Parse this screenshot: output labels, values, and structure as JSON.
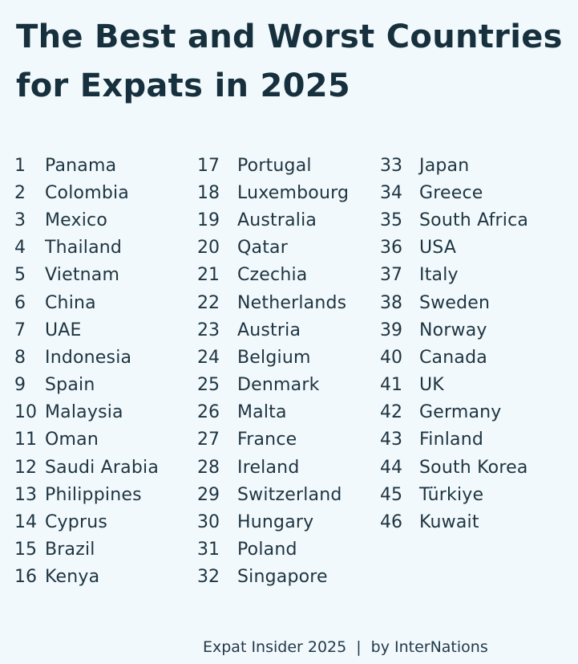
{
  "title": {
    "line1": "The Best and Worst Countries",
    "line2": "for Expats in 2025"
  },
  "columns": [
    [
      {
        "rank": "1",
        "country": "Panama"
      },
      {
        "rank": "2",
        "country": "Colombia"
      },
      {
        "rank": "3",
        "country": "Mexico"
      },
      {
        "rank": "4",
        "country": "Thailand"
      },
      {
        "rank": "5",
        "country": "Vietnam"
      },
      {
        "rank": "6",
        "country": "China"
      },
      {
        "rank": "7",
        "country": "UAE"
      },
      {
        "rank": "8",
        "country": "Indonesia"
      },
      {
        "rank": "9",
        "country": "Spain"
      },
      {
        "rank": "10",
        "country": "Malaysia"
      },
      {
        "rank": "11",
        "country": "Oman"
      },
      {
        "rank": "12",
        "country": "Saudi Arabia"
      },
      {
        "rank": "13",
        "country": "Philippines"
      },
      {
        "rank": "14",
        "country": "Cyprus"
      },
      {
        "rank": "15",
        "country": "Brazil"
      },
      {
        "rank": "16",
        "country": "Kenya"
      }
    ],
    [
      {
        "rank": "17",
        "country": "Portugal"
      },
      {
        "rank": "18",
        "country": "Luxembourg"
      },
      {
        "rank": "19",
        "country": "Australia"
      },
      {
        "rank": "20",
        "country": "Qatar"
      },
      {
        "rank": "21",
        "country": "Czechia"
      },
      {
        "rank": "22",
        "country": "Netherlands"
      },
      {
        "rank": "23",
        "country": "Austria"
      },
      {
        "rank": "24",
        "country": "Belgium"
      },
      {
        "rank": "25",
        "country": "Denmark"
      },
      {
        "rank": "26",
        "country": "Malta"
      },
      {
        "rank": "27",
        "country": "France"
      },
      {
        "rank": "28",
        "country": "Ireland"
      },
      {
        "rank": "29",
        "country": "Switzerland"
      },
      {
        "rank": "30",
        "country": "Hungary"
      },
      {
        "rank": "31",
        "country": "Poland"
      },
      {
        "rank": "32",
        "country": "Singapore"
      }
    ],
    [
      {
        "rank": "33",
        "country": "Japan"
      },
      {
        "rank": "34",
        "country": "Greece"
      },
      {
        "rank": "35",
        "country": "South Africa"
      },
      {
        "rank": "36",
        "country": "USA"
      },
      {
        "rank": "37",
        "country": "Italy"
      },
      {
        "rank": "38",
        "country": "Sweden"
      },
      {
        "rank": "39",
        "country": "Norway"
      },
      {
        "rank": "40",
        "country": "Canada"
      },
      {
        "rank": "41",
        "country": "UK"
      },
      {
        "rank": "42",
        "country": "Germany"
      },
      {
        "rank": "43",
        "country": "Finland"
      },
      {
        "rank": "44",
        "country": "South Korea"
      },
      {
        "rank": "45",
        "country": "Türkiye"
      },
      {
        "rank": "46",
        "country": "Kuwait"
      }
    ]
  ],
  "footer": {
    "source": "Expat Insider 2025",
    "separator": "|",
    "credit": "by InterNations"
  },
  "colors": {
    "background": "#f1f9fc",
    "text": "#1b2f3c"
  }
}
